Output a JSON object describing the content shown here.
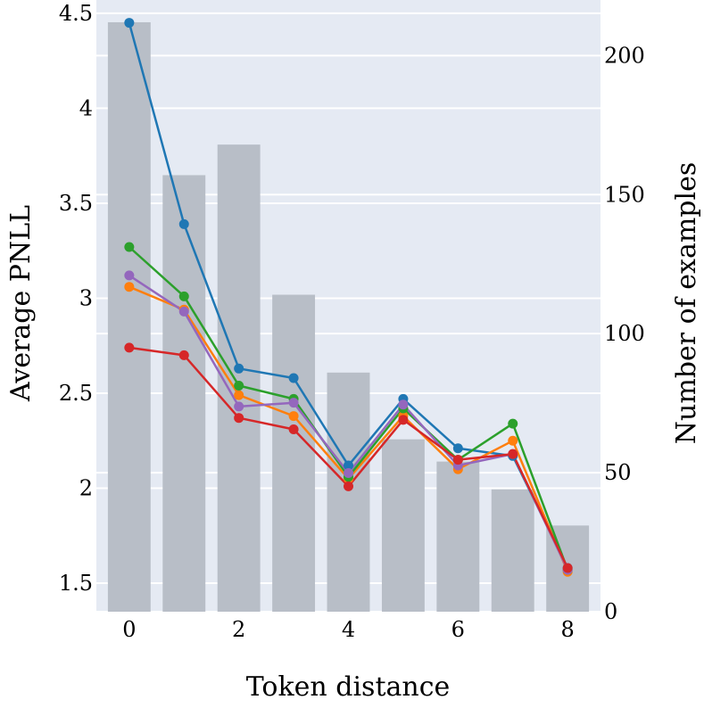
{
  "chart_data": {
    "type": "bar",
    "xlabel": "Token distance",
    "ylabel": "Average PNLL",
    "y2label": "Number of examples",
    "ylim": [
      1.35,
      4.57
    ],
    "y2lim": [
      0,
      220
    ],
    "xlim": [
      -0.6,
      8.6
    ],
    "grid": true,
    "x_ticks": [
      0,
      2,
      4,
      6,
      8
    ],
    "y_ticks": [
      1.5,
      2,
      2.5,
      3,
      3.5,
      4,
      4.5
    ],
    "y_tick_labels": [
      "1.5",
      "2",
      "2.5",
      "3",
      "3.5",
      "4",
      "4.5"
    ],
    "y2_ticks": [
      0,
      50,
      100,
      150,
      200
    ],
    "y2_tick_labels": [
      "0",
      "50",
      "100",
      "150",
      "200"
    ],
    "x_tick_labels": [
      "0",
      "2",
      "4",
      "6",
      "8"
    ],
    "categories": [
      0,
      1,
      2,
      3,
      4,
      5,
      6,
      7,
      8
    ],
    "bars": {
      "axis": "right",
      "color": "#b8bec7",
      "values": [
        212,
        157,
        168,
        114,
        86,
        62,
        54,
        44,
        31
      ]
    },
    "series": [
      {
        "color": "#1f77b4",
        "values": [
          4.45,
          3.39,
          2.63,
          2.58,
          2.12,
          2.47,
          2.21,
          2.17,
          1.58
        ]
      },
      {
        "color": "#ff7f0e",
        "values": [
          3.06,
          2.94,
          2.49,
          2.38,
          2.05,
          2.38,
          2.1,
          2.25,
          1.56
        ]
      },
      {
        "color": "#2ca02c",
        "values": [
          3.27,
          3.01,
          2.54,
          2.47,
          2.06,
          2.42,
          2.15,
          2.34,
          1.57
        ]
      },
      {
        "color": "#9467bd",
        "values": [
          3.12,
          2.93,
          2.43,
          2.45,
          2.08,
          2.44,
          2.12,
          2.18,
          1.57
        ]
      },
      {
        "color": "#d62728",
        "values": [
          2.74,
          2.7,
          2.37,
          2.31,
          2.01,
          2.36,
          2.15,
          2.18,
          1.58
        ]
      }
    ],
    "colors": {
      "plot_background": "#e5eaf3",
      "grid": "#ffffff"
    }
  }
}
